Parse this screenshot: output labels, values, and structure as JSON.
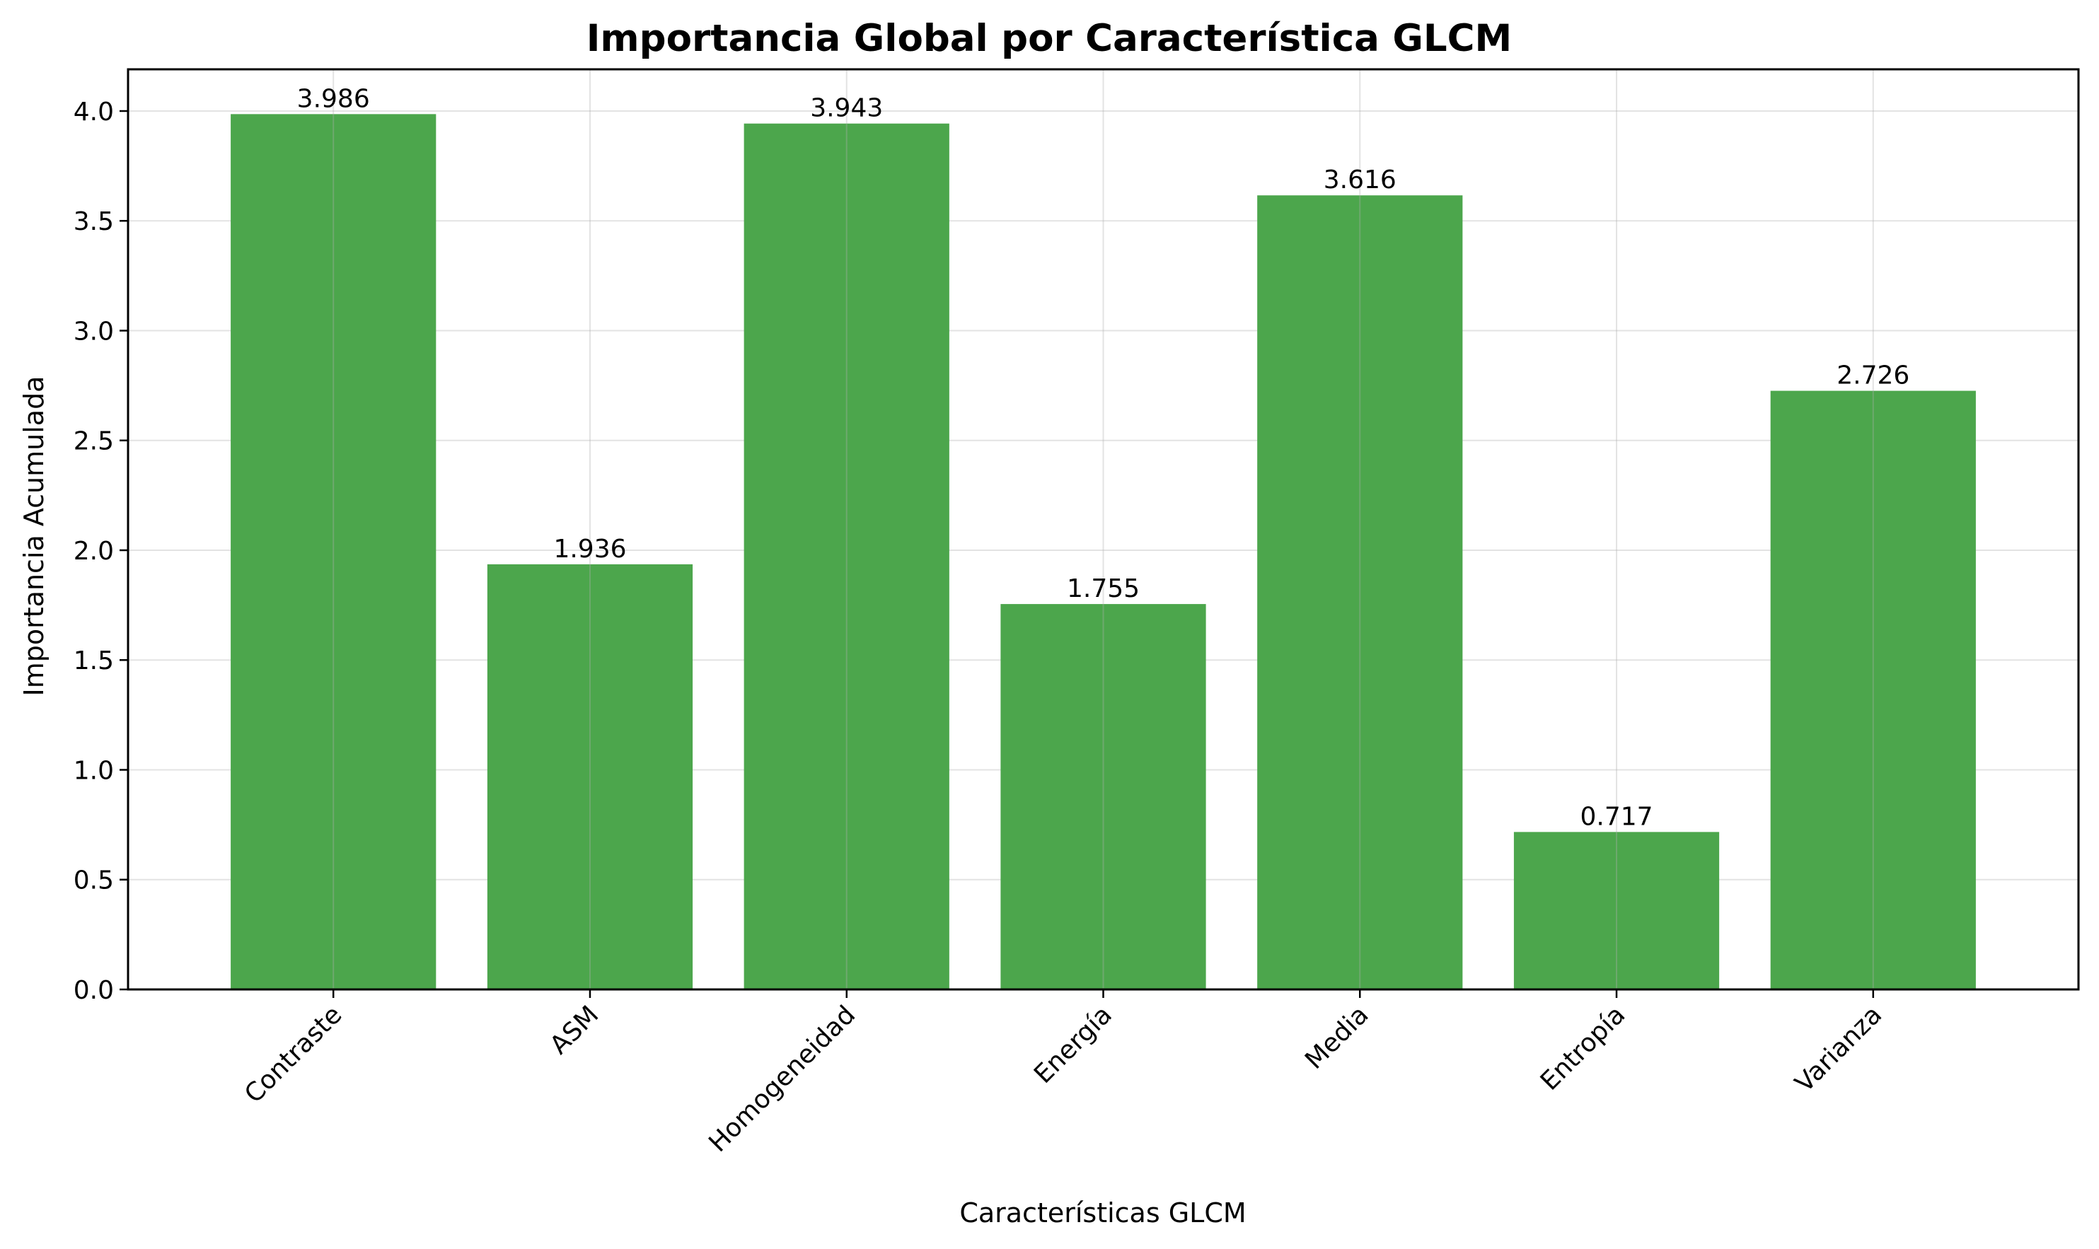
{
  "chart_data": {
    "type": "bar",
    "title": "Importancia Global por Característica GLCM",
    "xlabel": "Características GLCM",
    "ylabel": "Importancia Acumulada",
    "categories": [
      "Contraste",
      "ASM",
      "Homogeneidad",
      "Energía",
      "Media",
      "Entropía",
      "Varianza"
    ],
    "values": [
      3.986,
      1.936,
      3.943,
      1.755,
      3.616,
      0.717,
      2.726
    ],
    "value_labels": [
      "3.986",
      "1.936",
      "3.943",
      "1.755",
      "3.616",
      "0.717",
      "2.726"
    ],
    "yticks": [
      "0.0",
      "0.5",
      "1.0",
      "1.5",
      "2.0",
      "2.5",
      "3.0",
      "3.5",
      "4.0"
    ],
    "ylim": [
      0,
      4.19
    ],
    "bar_color": "#4ca64c",
    "grid": true,
    "x_tick_rotation": "45 degrees"
  }
}
